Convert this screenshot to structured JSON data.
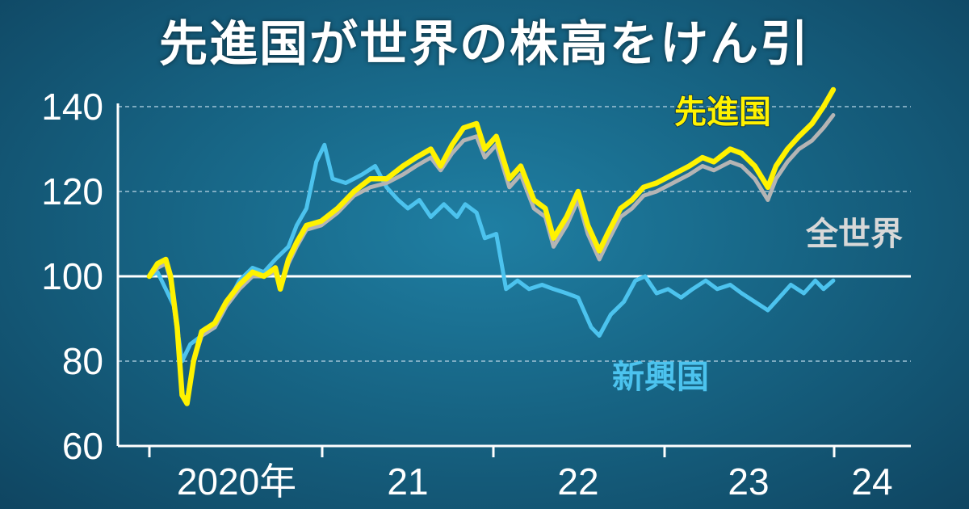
{
  "title": "先進国が世界の株高をけん引",
  "chart_data": {
    "type": "line",
    "ylim": [
      60,
      145
    ],
    "y_ticks": [
      "60",
      "80",
      "100",
      "120",
      "140"
    ],
    "x_ticks": [
      "2020年",
      "21",
      "22",
      "23",
      "24"
    ],
    "baseline": 100,
    "grid": "dashed horizontal at 80, 120, 140",
    "series": [
      {
        "name": "先進国",
        "color": "#fff200",
        "points": [
          [
            2020.0,
            100
          ],
          [
            2020.05,
            103
          ],
          [
            2020.1,
            104
          ],
          [
            2020.13,
            100
          ],
          [
            2020.17,
            88
          ],
          [
            2020.2,
            72
          ],
          [
            2020.23,
            70
          ],
          [
            2020.27,
            80
          ],
          [
            2020.32,
            87
          ],
          [
            2020.4,
            89
          ],
          [
            2020.47,
            94
          ],
          [
            2020.55,
            98
          ],
          [
            2020.63,
            101
          ],
          [
            2020.7,
            100
          ],
          [
            2020.77,
            102
          ],
          [
            2020.8,
            97
          ],
          [
            2020.85,
            104
          ],
          [
            2020.9,
            108
          ],
          [
            2020.96,
            112
          ],
          [
            2021.05,
            113
          ],
          [
            2021.15,
            116
          ],
          [
            2021.25,
            120
          ],
          [
            2021.35,
            123
          ],
          [
            2021.45,
            123
          ],
          [
            2021.55,
            126
          ],
          [
            2021.63,
            128
          ],
          [
            2021.72,
            130
          ],
          [
            2021.78,
            126
          ],
          [
            2021.85,
            131
          ],
          [
            2021.92,
            135
          ],
          [
            2022.0,
            136
          ],
          [
            2022.05,
            130
          ],
          [
            2022.12,
            133
          ],
          [
            2022.2,
            123
          ],
          [
            2022.27,
            126
          ],
          [
            2022.35,
            118
          ],
          [
            2022.42,
            116
          ],
          [
            2022.47,
            109
          ],
          [
            2022.55,
            114
          ],
          [
            2022.62,
            120
          ],
          [
            2022.68,
            112
          ],
          [
            2022.75,
            106
          ],
          [
            2022.8,
            110
          ],
          [
            2022.88,
            116
          ],
          [
            2022.95,
            118
          ],
          [
            2023.02,
            121
          ],
          [
            2023.1,
            122
          ],
          [
            2023.2,
            124
          ],
          [
            2023.3,
            126
          ],
          [
            2023.38,
            128
          ],
          [
            2023.45,
            127
          ],
          [
            2023.55,
            130
          ],
          [
            2023.62,
            129
          ],
          [
            2023.7,
            126
          ],
          [
            2023.78,
            121
          ],
          [
            2023.83,
            126
          ],
          [
            2023.9,
            130
          ],
          [
            2023.97,
            133
          ],
          [
            2024.05,
            136
          ],
          [
            2024.12,
            140
          ],
          [
            2024.18,
            144
          ]
        ]
      },
      {
        "name": "全世界",
        "color": "#b4b4b4",
        "points": [
          [
            2020.0,
            100
          ],
          [
            2020.05,
            102
          ],
          [
            2020.1,
            103
          ],
          [
            2020.13,
            99
          ],
          [
            2020.17,
            87
          ],
          [
            2020.2,
            72
          ],
          [
            2020.23,
            71
          ],
          [
            2020.27,
            80
          ],
          [
            2020.32,
            86
          ],
          [
            2020.4,
            88
          ],
          [
            2020.47,
            93
          ],
          [
            2020.55,
            97
          ],
          [
            2020.63,
            100
          ],
          [
            2020.7,
            100
          ],
          [
            2020.77,
            101
          ],
          [
            2020.8,
            97
          ],
          [
            2020.85,
            103
          ],
          [
            2020.9,
            107
          ],
          [
            2020.96,
            111
          ],
          [
            2021.05,
            112
          ],
          [
            2021.15,
            115
          ],
          [
            2021.25,
            119
          ],
          [
            2021.35,
            121
          ],
          [
            2021.45,
            122
          ],
          [
            2021.55,
            124
          ],
          [
            2021.63,
            126
          ],
          [
            2021.72,
            128
          ],
          [
            2021.78,
            125
          ],
          [
            2021.85,
            129
          ],
          [
            2021.92,
            132
          ],
          [
            2022.0,
            133
          ],
          [
            2022.05,
            128
          ],
          [
            2022.12,
            131
          ],
          [
            2022.2,
            121
          ],
          [
            2022.27,
            124
          ],
          [
            2022.35,
            116
          ],
          [
            2022.42,
            114
          ],
          [
            2022.47,
            107
          ],
          [
            2022.55,
            112
          ],
          [
            2022.62,
            118
          ],
          [
            2022.68,
            110
          ],
          [
            2022.75,
            104
          ],
          [
            2022.8,
            108
          ],
          [
            2022.88,
            114
          ],
          [
            2022.95,
            116
          ],
          [
            2023.02,
            119
          ],
          [
            2023.1,
            120
          ],
          [
            2023.2,
            122
          ],
          [
            2023.3,
            124
          ],
          [
            2023.38,
            126
          ],
          [
            2023.45,
            125
          ],
          [
            2023.55,
            127
          ],
          [
            2023.62,
            126
          ],
          [
            2023.7,
            123
          ],
          [
            2023.78,
            118
          ],
          [
            2023.83,
            123
          ],
          [
            2023.9,
            127
          ],
          [
            2023.97,
            130
          ],
          [
            2024.05,
            132
          ],
          [
            2024.12,
            135
          ],
          [
            2024.18,
            138
          ]
        ]
      },
      {
        "name": "新興国",
        "color": "#4cc3ee",
        "points": [
          [
            2020.0,
            100
          ],
          [
            2020.05,
            101
          ],
          [
            2020.1,
            97
          ],
          [
            2020.15,
            93
          ],
          [
            2020.2,
            80
          ],
          [
            2020.25,
            84
          ],
          [
            2020.32,
            86
          ],
          [
            2020.4,
            88
          ],
          [
            2020.47,
            93
          ],
          [
            2020.55,
            99
          ],
          [
            2020.63,
            102
          ],
          [
            2020.7,
            101
          ],
          [
            2020.77,
            104
          ],
          [
            2020.85,
            107
          ],
          [
            2020.9,
            112
          ],
          [
            2020.96,
            116
          ],
          [
            2021.02,
            127
          ],
          [
            2021.07,
            131
          ],
          [
            2021.12,
            123
          ],
          [
            2021.2,
            122
          ],
          [
            2021.3,
            124
          ],
          [
            2021.38,
            126
          ],
          [
            2021.45,
            121
          ],
          [
            2021.52,
            118
          ],
          [
            2021.58,
            116
          ],
          [
            2021.65,
            118
          ],
          [
            2021.72,
            114
          ],
          [
            2021.8,
            117
          ],
          [
            2021.88,
            114
          ],
          [
            2021.93,
            117
          ],
          [
            2022.0,
            115
          ],
          [
            2022.05,
            109
          ],
          [
            2022.12,
            110
          ],
          [
            2022.18,
            97
          ],
          [
            2022.25,
            99
          ],
          [
            2022.32,
            97
          ],
          [
            2022.4,
            98
          ],
          [
            2022.47,
            97
          ],
          [
            2022.55,
            96
          ],
          [
            2022.62,
            95
          ],
          [
            2022.7,
            88
          ],
          [
            2022.75,
            86
          ],
          [
            2022.82,
            91
          ],
          [
            2022.9,
            94
          ],
          [
            2022.97,
            99
          ],
          [
            2023.03,
            100
          ],
          [
            2023.1,
            96
          ],
          [
            2023.17,
            97
          ],
          [
            2023.25,
            95
          ],
          [
            2023.32,
            97
          ],
          [
            2023.4,
            99
          ],
          [
            2023.47,
            97
          ],
          [
            2023.55,
            98
          ],
          [
            2023.62,
            96
          ],
          [
            2023.7,
            94
          ],
          [
            2023.78,
            92
          ],
          [
            2023.85,
            95
          ],
          [
            2023.92,
            98
          ],
          [
            2024.0,
            96
          ],
          [
            2024.07,
            99
          ],
          [
            2024.12,
            97
          ],
          [
            2024.18,
            99
          ]
        ]
      }
    ],
    "labels": [
      {
        "text": "先進国",
        "color": "#fff200"
      },
      {
        "text": "全世界",
        "color": "#d8d8d8"
      },
      {
        "text": "新興国",
        "color": "#4cc3ee"
      }
    ]
  }
}
